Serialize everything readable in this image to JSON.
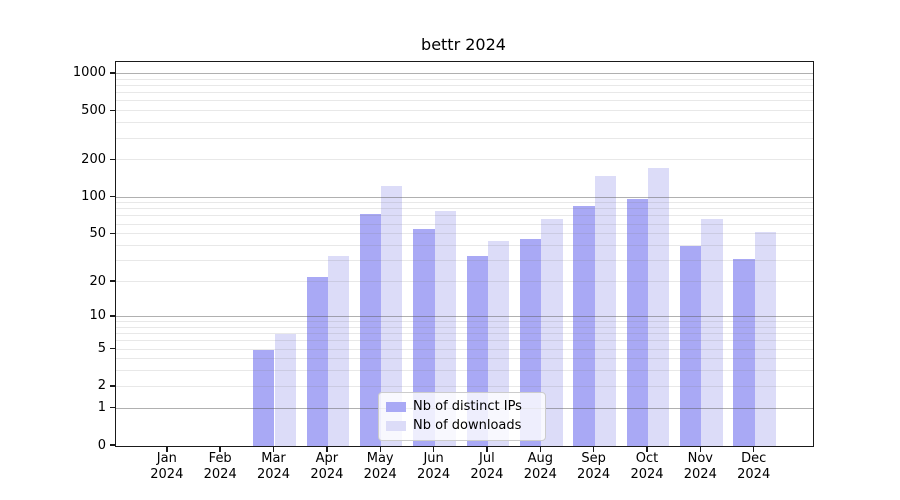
{
  "figure_title": "bettr 2024",
  "chart_data": {
    "type": "bar",
    "title": "bettr 2024",
    "categories": [
      "Jan 2024",
      "Feb 2024",
      "Mar 2024",
      "Apr 2024",
      "May 2024",
      "Jun 2024",
      "Jul 2024",
      "Aug 2024",
      "Sep 2024",
      "Oct 2024",
      "Nov 2024",
      "Dec 2024"
    ],
    "x_tick_months": [
      "Jan",
      "Feb",
      "Mar",
      "Apr",
      "May",
      "Jun",
      "Jul",
      "Aug",
      "Sep",
      "Oct",
      "Nov",
      "Dec"
    ],
    "x_tick_year": "2024",
    "series": [
      {
        "name": "Nb of distinct IPs",
        "color": "#a9a9f5",
        "values": [
          0,
          0,
          5,
          22,
          73,
          55,
          33,
          46,
          85,
          97,
          40,
          31
        ]
      },
      {
        "name": "Nb of downloads",
        "color": "#dcdcf8",
        "values": [
          0,
          0,
          7,
          33,
          125,
          78,
          44,
          67,
          150,
          175,
          67,
          52
        ]
      }
    ],
    "y_ticks": [
      0,
      1,
      2,
      5,
      10,
      20,
      50,
      100,
      200,
      500,
      1000
    ],
    "y_scale": "log10(value+1), linear at 0",
    "ylim": [
      0,
      1250
    ],
    "grid": true,
    "legend_position": "lower center"
  },
  "colors": {
    "series1": "#a9a9f5",
    "series2": "#dcdcf8",
    "major_grid": "#9a9a9a",
    "minor_grid": "#e7e7e7",
    "axis": "#000000",
    "background": "#ffffff"
  }
}
